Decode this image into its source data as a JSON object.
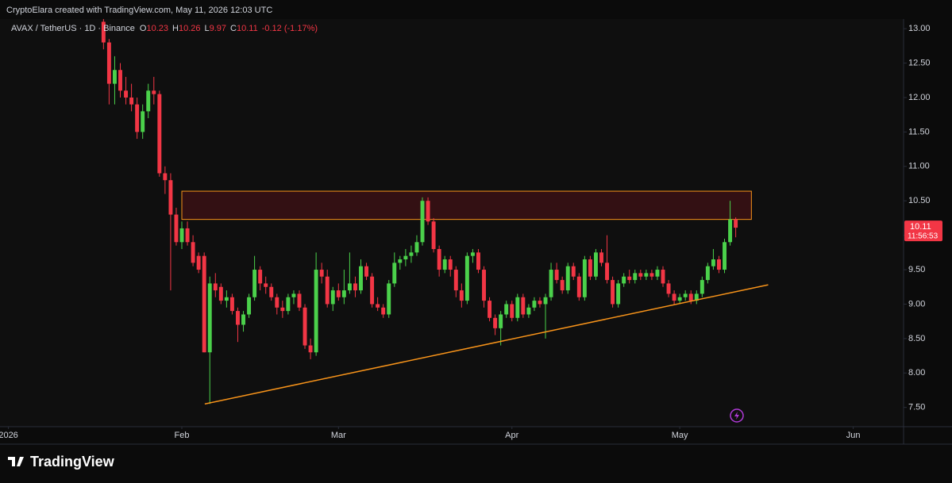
{
  "header": "CryptoElara created with TradingView.com, May 11, 2026 12:03 UTC",
  "legend": {
    "symbol": "AVAX / TetherUS · 1D · Binance",
    "labels": [
      "O",
      "H",
      "L",
      "C"
    ],
    "open": 10.23,
    "high": 10.26,
    "low": 9.97,
    "close": 10.11,
    "change": "-0.12 (-1.17%)"
  },
  "price_badge": {
    "price": 10.11,
    "countdown": "11:56:53"
  },
  "brand": "TradingView",
  "chart_data": {
    "type": "candlestick",
    "x": [
      17,
      18,
      19,
      20,
      21,
      22,
      23,
      24,
      25,
      26,
      27,
      28,
      29,
      30,
      31,
      32,
      33,
      34,
      35,
      36,
      37,
      38,
      39,
      40,
      41,
      42,
      43,
      44,
      45,
      46,
      47,
      48,
      49,
      50,
      51,
      52,
      53,
      54,
      55,
      56,
      57,
      58,
      59,
      60,
      61,
      62,
      63,
      64,
      65,
      66,
      67,
      68,
      69,
      70,
      71,
      72,
      73,
      74,
      75,
      76,
      77,
      78,
      79,
      80,
      81,
      82,
      83,
      84,
      85,
      86,
      87,
      88,
      89,
      90,
      91,
      92,
      93,
      94,
      95,
      96,
      97,
      98,
      99,
      100,
      101,
      102,
      103,
      104,
      105,
      106,
      107,
      108,
      109,
      110,
      111,
      112,
      113,
      114,
      115,
      116,
      117,
      118,
      119,
      120,
      121,
      122,
      123,
      124,
      125,
      126,
      127,
      128,
      129,
      130
    ],
    "open": [
      13.1,
      12.8,
      12.2,
      12.4,
      12.1,
      12.0,
      11.9,
      11.5,
      11.8,
      12.1,
      12.05,
      10.9,
      10.8,
      10.3,
      9.9,
      10.1,
      9.9,
      9.7,
      9.7,
      8.3,
      9.3,
      9.25,
      9.05,
      9.1,
      8.9,
      8.7,
      8.85,
      9.1,
      9.5,
      9.3,
      9.25,
      9.1,
      8.95,
      8.9,
      9.1,
      9.15,
      8.95,
      8.4,
      8.3,
      9.5,
      9.4,
      9.0,
      9.2,
      9.1,
      9.2,
      9.3,
      9.2,
      9.55,
      9.4,
      9.0,
      8.95,
      8.85,
      9.3,
      9.6,
      9.65,
      9.7,
      9.75,
      9.9,
      10.5,
      10.2,
      9.8,
      9.5,
      9.65,
      9.5,
      9.2,
      9.05,
      9.7,
      9.75,
      9.5,
      9.05,
      8.8,
      8.65,
      8.85,
      9.0,
      8.8,
      9.1,
      8.85,
      8.95,
      9.05,
      9.0,
      9.1,
      9.5,
      9.35,
      9.2,
      9.55,
      9.4,
      9.1,
      9.65,
      9.4,
      9.75,
      9.6,
      9.35,
      9.0,
      9.3,
      9.4,
      9.35,
      9.45,
      9.4,
      9.45,
      9.4,
      9.5,
      9.3,
      9.15,
      9.05,
      9.1,
      9.15,
      9.05,
      9.15,
      9.35,
      9.55,
      9.65,
      9.5,
      9.9,
      10.23
    ],
    "high": [
      13.2,
      12.85,
      12.6,
      12.5,
      12.3,
      12.2,
      12.0,
      11.9,
      12.2,
      12.3,
      12.1,
      11.0,
      10.9,
      10.4,
      10.2,
      10.2,
      10.0,
      9.75,
      9.75,
      9.4,
      9.45,
      9.3,
      9.2,
      9.15,
      8.95,
      8.9,
      9.15,
      9.7,
      9.55,
      9.4,
      9.3,
      9.15,
      9.05,
      9.15,
      9.2,
      9.2,
      9.0,
      8.5,
      9.75,
      9.6,
      9.5,
      9.25,
      9.3,
      9.5,
      9.75,
      9.4,
      9.65,
      9.6,
      9.45,
      9.1,
      9.0,
      9.35,
      9.75,
      9.7,
      9.8,
      9.85,
      10.0,
      10.55,
      10.55,
      10.25,
      9.85,
      9.7,
      9.7,
      9.55,
      9.3,
      9.75,
      9.8,
      9.8,
      9.55,
      9.1,
      8.85,
      8.9,
      9.05,
      9.05,
      9.15,
      9.15,
      9.0,
      9.1,
      9.1,
      9.15,
      9.6,
      9.6,
      9.4,
      9.6,
      9.6,
      9.45,
      9.7,
      9.7,
      9.8,
      9.8,
      10.0,
      9.4,
      9.35,
      9.45,
      9.5,
      9.5,
      9.5,
      9.5,
      9.5,
      9.55,
      9.55,
      9.35,
      9.2,
      9.15,
      9.2,
      9.2,
      9.2,
      9.4,
      9.6,
      9.8,
      9.7,
      9.95,
      10.5,
      10.26
    ],
    "low": [
      12.7,
      11.9,
      11.9,
      12.0,
      11.9,
      11.8,
      11.4,
      11.4,
      11.7,
      11.9,
      10.85,
      10.6,
      9.2,
      9.85,
      9.8,
      9.85,
      9.55,
      9.45,
      8.3,
      7.55,
      9.1,
      9.0,
      8.95,
      8.85,
      8.45,
      8.6,
      8.8,
      9.05,
      9.2,
      9.15,
      9.05,
      8.85,
      8.8,
      8.85,
      9.0,
      8.9,
      8.35,
      8.2,
      8.25,
      9.3,
      8.95,
      8.9,
      9.05,
      9.0,
      9.15,
      9.1,
      9.15,
      9.35,
      8.95,
      8.9,
      8.8,
      8.8,
      9.25,
      9.5,
      9.55,
      9.6,
      9.7,
      9.85,
      10.15,
      9.75,
      9.4,
      9.45,
      9.4,
      9.1,
      8.95,
      9.0,
      9.6,
      9.45,
      8.95,
      8.75,
      8.55,
      8.4,
      8.8,
      8.75,
      8.75,
      8.8,
      8.8,
      8.9,
      8.95,
      8.5,
      9.05,
      9.3,
      9.15,
      9.15,
      9.35,
      9.05,
      9.05,
      9.35,
      9.35,
      9.55,
      9.3,
      8.95,
      8.95,
      9.25,
      9.3,
      9.3,
      9.35,
      9.35,
      9.35,
      9.35,
      9.25,
      9.1,
      9.0,
      9.0,
      9.05,
      9.0,
      9.0,
      9.1,
      9.3,
      9.5,
      9.45,
      9.45,
      9.85,
      9.97
    ],
    "close": [
      12.8,
      12.2,
      12.4,
      12.1,
      12.0,
      11.9,
      11.5,
      11.8,
      12.1,
      12.05,
      10.9,
      10.8,
      10.3,
      9.9,
      10.1,
      9.9,
      9.6,
      9.5,
      8.3,
      9.3,
      9.2,
      9.05,
      9.1,
      8.9,
      8.7,
      8.85,
      9.1,
      9.5,
      9.3,
      9.25,
      9.1,
      8.95,
      8.9,
      9.1,
      9.15,
      8.95,
      8.4,
      8.3,
      9.5,
      9.4,
      9.0,
      9.2,
      9.1,
      9.2,
      9.3,
      9.2,
      9.55,
      9.4,
      9.0,
      8.95,
      8.85,
      9.3,
      9.6,
      9.65,
      9.7,
      9.75,
      9.9,
      10.5,
      10.2,
      9.8,
      9.5,
      9.65,
      9.5,
      9.2,
      9.05,
      9.7,
      9.75,
      9.5,
      9.05,
      8.8,
      8.65,
      8.85,
      9.0,
      8.8,
      9.1,
      8.85,
      8.95,
      9.05,
      9.0,
      9.1,
      9.5,
      9.35,
      9.2,
      9.55,
      9.4,
      9.1,
      9.65,
      9.4,
      9.75,
      9.6,
      9.35,
      9.0,
      9.3,
      9.4,
      9.35,
      9.45,
      9.4,
      9.45,
      9.4,
      9.5,
      9.3,
      9.15,
      9.05,
      9.1,
      9.15,
      9.05,
      9.15,
      9.35,
      9.55,
      9.65,
      9.5,
      9.9,
      10.23,
      10.11
    ],
    "up_color": "#4bd14b",
    "down_color": "#f23645",
    "zone": {
      "xlim": [
        31,
        132.8
      ],
      "ylim": [
        10.23,
        10.64
      ],
      "color": "#f7931a"
    },
    "trendline": {
      "x": [
        35.1,
        135.8
      ],
      "y": [
        7.55,
        9.28
      ],
      "color": "#f7931a"
    },
    "xlim": [
      -1.5,
      160
    ],
    "ylim": [
      7.22,
      13.14
    ],
    "xticks": [
      {
        "value": 0,
        "label": "2026"
      },
      {
        "value": 31,
        "label": "Feb"
      },
      {
        "value": 59,
        "label": "Mar"
      },
      {
        "value": 90,
        "label": "Apr"
      },
      {
        "value": 120,
        "label": "May"
      },
      {
        "value": 151,
        "label": "Jun"
      }
    ],
    "yticks": [
      {
        "value": 7.5,
        "label": "7.50"
      },
      {
        "value": 8,
        "label": "8.00"
      },
      {
        "value": 8.5,
        "label": "8.50"
      },
      {
        "value": 9,
        "label": "9.00"
      },
      {
        "value": 9.5,
        "label": "9.50"
      },
      {
        "value": 10,
        "label": "10.00"
      },
      {
        "value": 10.5,
        "label": "10.50"
      },
      {
        "value": 11,
        "label": "11.00"
      },
      {
        "value": 11.5,
        "label": "11.50"
      },
      {
        "value": 12,
        "label": "12.00"
      },
      {
        "value": 12.5,
        "label": "12.50"
      },
      {
        "value": 13,
        "label": "13.00"
      }
    ]
  }
}
